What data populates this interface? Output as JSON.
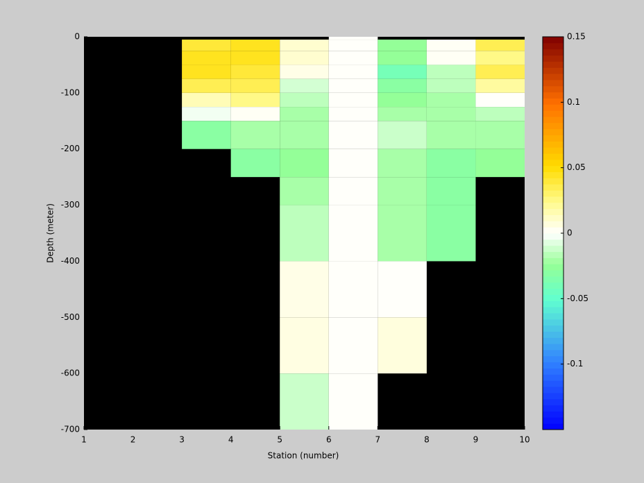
{
  "chart_data": {
    "type": "heatmap",
    "xlabel": "Station (number)",
    "ylabel": "Depth (meter)",
    "x": [
      1,
      2,
      3,
      4,
      5,
      6,
      7,
      8,
      9,
      10
    ],
    "y": [
      0,
      -5,
      -25,
      -50,
      -75,
      -100,
      -125,
      -150,
      -200,
      -250,
      -300,
      -400,
      -500,
      -600,
      -700
    ],
    "z": [
      [
        null,
        null,
        null,
        null,
        null,
        0.001,
        null,
        null,
        null
      ],
      [
        null,
        null,
        0.04,
        0.045,
        0.01,
        0.001,
        -0.025,
        0.002,
        0.035
      ],
      [
        null,
        null,
        0.045,
        0.045,
        0.01,
        0.001,
        -0.025,
        0.002,
        0.025
      ],
      [
        null,
        null,
        0.045,
        0.04,
        0.005,
        0.001,
        -0.04,
        -0.015,
        0.035
      ],
      [
        null,
        null,
        0.035,
        0.035,
        -0.01,
        0.001,
        -0.03,
        -0.015,
        0.02
      ],
      [
        null,
        null,
        0.015,
        0.025,
        -0.015,
        0.001,
        -0.025,
        -0.02,
        0.001
      ],
      [
        null,
        null,
        -0.003,
        0.002,
        -0.02,
        0.001,
        -0.02,
        -0.02,
        -0.015
      ],
      [
        null,
        null,
        -0.03,
        -0.02,
        -0.02,
        0.001,
        -0.012,
        -0.02,
        -0.02
      ],
      [
        null,
        null,
        null,
        -0.03,
        -0.025,
        0.001,
        -0.02,
        -0.03,
        -0.025
      ],
      [
        null,
        null,
        null,
        null,
        -0.02,
        0.001,
        -0.02,
        -0.03,
        null
      ],
      [
        null,
        null,
        null,
        null,
        -0.015,
        0.001,
        -0.02,
        -0.03,
        null
      ],
      [
        null,
        null,
        null,
        null,
        0.005,
        0.001,
        0.001,
        null,
        null
      ],
      [
        null,
        null,
        null,
        null,
        0.006,
        0.001,
        0.007,
        null,
        null
      ],
      [
        null,
        null,
        null,
        null,
        -0.012,
        0.001,
        null,
        null,
        null
      ]
    ],
    "xlim": [
      1,
      10
    ],
    "xticks": [
      1,
      2,
      3,
      4,
      5,
      6,
      7,
      8,
      9,
      10
    ],
    "ylim": [
      -700,
      0
    ],
    "yticks": [
      0,
      -100,
      -200,
      -300,
      -400,
      -500,
      -600,
      -700
    ],
    "clim": [
      -0.15,
      0.15
    ],
    "cticks": [
      0.15,
      0.1,
      0.05,
      0,
      -0.05,
      -0.1
    ],
    "nan_color": "#000000"
  }
}
